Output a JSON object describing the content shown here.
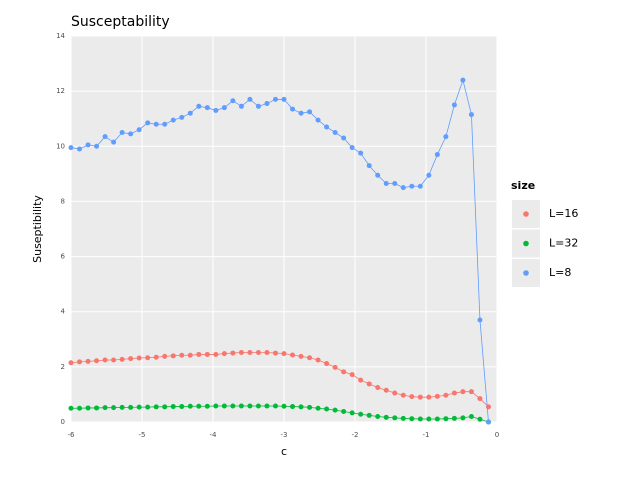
{
  "chart_data": {
    "type": "line",
    "title": "Susceptability",
    "x_label": "c",
    "y_label": "Suseptibility",
    "legend_title": "size",
    "legend_position": "right",
    "grid": true,
    "xlim": [
      -6,
      0
    ],
    "xticks": [
      -6,
      -5,
      -4,
      -3,
      -2,
      -1,
      0
    ],
    "ylim": [
      0,
      14
    ],
    "yticks": [
      0,
      2,
      4,
      6,
      8,
      10,
      12,
      14
    ],
    "x": [
      -6,
      -5.88,
      -5.76,
      -5.64,
      -5.52,
      -5.4,
      -5.28,
      -5.16,
      -5.04,
      -4.92,
      -4.8,
      -4.68,
      -4.56,
      -4.44,
      -4.32,
      -4.2,
      -4.08,
      -3.96,
      -3.84,
      -3.72,
      -3.6,
      -3.48,
      -3.36,
      -3.24,
      -3.12,
      -3,
      -2.88,
      -2.76,
      -2.64,
      -2.52,
      -2.4,
      -2.28,
      -2.16,
      -2.04,
      -1.92,
      -1.8,
      -1.68,
      -1.56,
      -1.44,
      -1.32,
      -1.2,
      -1.08,
      -0.96,
      -0.84,
      -0.72,
      -0.6,
      -0.48,
      -0.36,
      -0.24,
      -0.12
    ],
    "series": [
      {
        "name": "L=16",
        "color": "#f8766d",
        "values": [
          2.15,
          2.18,
          2.2,
          2.22,
          2.25,
          2.25,
          2.27,
          2.3,
          2.32,
          2.33,
          2.35,
          2.38,
          2.4,
          2.42,
          2.42,
          2.45,
          2.45,
          2.45,
          2.48,
          2.5,
          2.52,
          2.52,
          2.52,
          2.52,
          2.5,
          2.48,
          2.43,
          2.38,
          2.33,
          2.25,
          2.12,
          1.98,
          1.82,
          1.72,
          1.52,
          1.38,
          1.25,
          1.15,
          1.05,
          0.97,
          0.92,
          0.9,
          0.9,
          0.93,
          0.97,
          1.05,
          1.1,
          1.1,
          0.85,
          0.55
        ]
      },
      {
        "name": "L=32",
        "color": "#00ba38",
        "values": [
          0.5,
          0.5,
          0.51,
          0.51,
          0.52,
          0.52,
          0.53,
          0.53,
          0.54,
          0.54,
          0.55,
          0.55,
          0.56,
          0.56,
          0.57,
          0.57,
          0.57,
          0.58,
          0.58,
          0.58,
          0.58,
          0.58,
          0.58,
          0.58,
          0.58,
          0.57,
          0.56,
          0.55,
          0.53,
          0.5,
          0.47,
          0.43,
          0.38,
          0.33,
          0.28,
          0.24,
          0.2,
          0.17,
          0.15,
          0.13,
          0.12,
          0.11,
          0.11,
          0.11,
          0.12,
          0.13,
          0.15,
          0.2,
          0.1,
          0.0
        ]
      },
      {
        "name": "L=8",
        "color": "#619cff",
        "values": [
          9.95,
          9.9,
          10.05,
          10.0,
          10.35,
          10.15,
          10.5,
          10.45,
          10.6,
          10.85,
          10.8,
          10.8,
          10.95,
          11.05,
          11.2,
          11.45,
          11.4,
          11.3,
          11.4,
          11.65,
          11.45,
          11.7,
          11.45,
          11.55,
          11.7,
          11.7,
          11.35,
          11.2,
          11.25,
          10.95,
          10.7,
          10.5,
          10.3,
          9.95,
          9.75,
          9.3,
          8.95,
          8.65,
          8.65,
          8.5,
          8.55,
          8.55,
          8.95,
          9.7,
          10.35,
          11.5,
          12.4,
          11.15,
          3.7,
          0.0
        ]
      }
    ]
  }
}
